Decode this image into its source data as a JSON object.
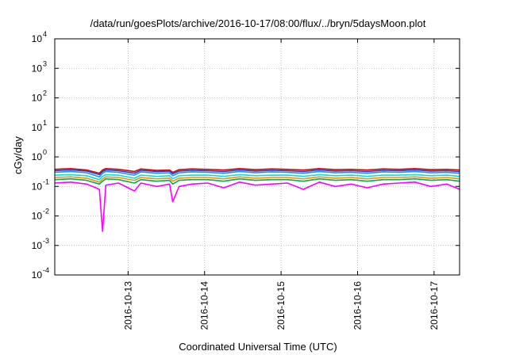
{
  "chart_data": {
    "type": "line",
    "title": "/data/run/goesPlots/archive/2016-10-17/08:00/flux/../bryn/5daysMoon.plot",
    "xlabel": "Coordinated Universal Time (UTC)",
    "ylabel": "cGy/day",
    "yscale": "log",
    "ylim": [
      0.0001,
      10000
    ],
    "xlim": [
      "2016-10-12 01:00",
      "2016-10-17 08:00"
    ],
    "grid": true,
    "legend": "none",
    "y_ticks": [
      {
        "base": "10",
        "exp": "-4"
      },
      {
        "base": "10",
        "exp": "-3"
      },
      {
        "base": "10",
        "exp": "-2"
      },
      {
        "base": "10",
        "exp": "-1"
      },
      {
        "base": "10",
        "exp": "0"
      },
      {
        "base": "10",
        "exp": "1"
      },
      {
        "base": "10",
        "exp": "2"
      },
      {
        "base": "10",
        "exp": "3"
      },
      {
        "base": "10",
        "exp": "4"
      }
    ],
    "x_ticks": [
      "2016-10-13",
      "2016-10-14",
      "2016-10-15",
      "2016-10-16",
      "2016-10-17"
    ],
    "x_tick_times": [
      "2016-10-13 00:00",
      "2016-10-14 00:00",
      "2016-10-15 00:00",
      "2016-10-16 00:00",
      "2016-10-17 00:00"
    ],
    "x": [
      "2016-10-12 01:00",
      "2016-10-12 06:00",
      "2016-10-12 11:00",
      "2016-10-12 15:00",
      "2016-10-12 16:00",
      "2016-10-12 17:00",
      "2016-10-12 21:00",
      "2016-10-13 02:00",
      "2016-10-13 04:00",
      "2016-10-13 09:00",
      "2016-10-13 13:00",
      "2016-10-13 14:00",
      "2016-10-13 16:00",
      "2016-10-13 20:00",
      "2016-10-14 01:00",
      "2016-10-14 06:00",
      "2016-10-14 11:00",
      "2016-10-14 16:00",
      "2016-10-14 21:00",
      "2016-10-15 02:00",
      "2016-10-15 07:00",
      "2016-10-15 12:00",
      "2016-10-15 17:00",
      "2016-10-15 22:00",
      "2016-10-16 03:00",
      "2016-10-16 08:00",
      "2016-10-16 13:00",
      "2016-10-16 18:00",
      "2016-10-16 23:00",
      "2016-10-17 04:00",
      "2016-10-17 08:00"
    ],
    "series": [
      {
        "color": "#e00000",
        "values": [
          0.38,
          0.4,
          0.36,
          0.28,
          0.36,
          0.4,
          0.38,
          0.32,
          0.39,
          0.35,
          0.36,
          0.3,
          0.37,
          0.39,
          0.38,
          0.36,
          0.4,
          0.37,
          0.39,
          0.38,
          0.36,
          0.4,
          0.37,
          0.38,
          0.36,
          0.39,
          0.38,
          0.4,
          0.37,
          0.38,
          0.36
        ]
      },
      {
        "color": "#2a3fbf",
        "values": [
          0.34,
          0.36,
          0.33,
          0.25,
          0.32,
          0.36,
          0.34,
          0.28,
          0.35,
          0.32,
          0.33,
          0.27,
          0.33,
          0.35,
          0.34,
          0.32,
          0.36,
          0.33,
          0.35,
          0.34,
          0.32,
          0.36,
          0.33,
          0.34,
          0.32,
          0.35,
          0.34,
          0.36,
          0.33,
          0.34,
          0.32
        ]
      },
      {
        "color": "#1e90ff",
        "values": [
          0.3,
          0.32,
          0.29,
          0.21,
          0.28,
          0.32,
          0.3,
          0.24,
          0.31,
          0.28,
          0.29,
          0.23,
          0.29,
          0.31,
          0.3,
          0.28,
          0.32,
          0.29,
          0.31,
          0.3,
          0.28,
          0.32,
          0.29,
          0.3,
          0.28,
          0.31,
          0.3,
          0.32,
          0.29,
          0.3,
          0.28
        ]
      },
      {
        "color": "#00e0e0",
        "values": [
          0.24,
          0.25,
          0.23,
          0.17,
          0.22,
          0.25,
          0.24,
          0.19,
          0.24,
          0.22,
          0.23,
          0.18,
          0.23,
          0.24,
          0.24,
          0.22,
          0.25,
          0.23,
          0.24,
          0.24,
          0.22,
          0.25,
          0.23,
          0.24,
          0.22,
          0.24,
          0.24,
          0.25,
          0.23,
          0.24,
          0.22
        ]
      },
      {
        "color": "#ff8c00",
        "values": [
          0.2,
          0.21,
          0.19,
          0.14,
          0.18,
          0.21,
          0.2,
          0.16,
          0.2,
          0.18,
          0.19,
          0.15,
          0.19,
          0.2,
          0.2,
          0.18,
          0.21,
          0.19,
          0.2,
          0.2,
          0.18,
          0.21,
          0.19,
          0.2,
          0.18,
          0.2,
          0.2,
          0.21,
          0.19,
          0.2,
          0.18
        ]
      },
      {
        "color": "#00b050",
        "values": [
          0.17,
          0.18,
          0.16,
          0.12,
          0.15,
          0.18,
          0.17,
          0.13,
          0.17,
          0.15,
          0.16,
          0.12,
          0.16,
          0.17,
          0.17,
          0.15,
          0.18,
          0.16,
          0.17,
          0.17,
          0.15,
          0.18,
          0.16,
          0.17,
          0.15,
          0.17,
          0.17,
          0.18,
          0.16,
          0.17,
          0.15
        ]
      },
      {
        "color": "#ff00ff",
        "values": [
          0.13,
          0.14,
          0.12,
          0.08,
          0.003,
          0.11,
          0.13,
          0.07,
          0.13,
          0.1,
          0.12,
          0.03,
          0.1,
          0.12,
          0.13,
          0.09,
          0.14,
          0.11,
          0.12,
          0.13,
          0.08,
          0.14,
          0.1,
          0.12,
          0.09,
          0.12,
          0.13,
          0.14,
          0.1,
          0.12,
          0.08
        ]
      }
    ]
  }
}
